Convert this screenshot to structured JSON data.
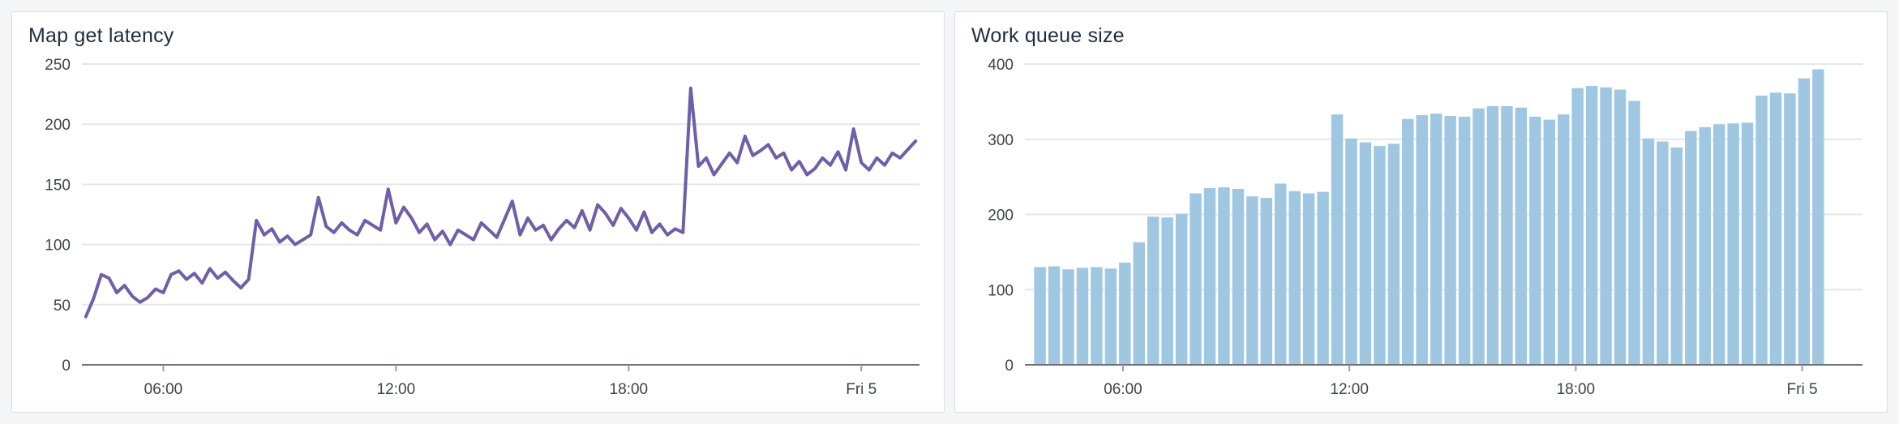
{
  "page": {
    "background": "#f4f5f7"
  },
  "panels": [
    {
      "title": "Map get latency"
    },
    {
      "title": "Work queue size"
    }
  ],
  "chart_data": [
    {
      "type": "line",
      "title": "Map get latency",
      "color": "#6d5fa8",
      "ylim": [
        0,
        250
      ],
      "yticks": [
        0,
        50,
        100,
        150,
        200,
        250
      ],
      "xlim": [
        3.9,
        25.5
      ],
      "xticks": [
        6,
        12,
        18,
        24
      ],
      "xtick_labels": [
        "06:00",
        "12:00",
        "18:00",
        "Fri 5"
      ],
      "x_unit": "hour-of-day",
      "x_start": 4.0,
      "x_step": 0.2,
      "values": [
        40,
        55,
        75,
        72,
        60,
        66,
        57,
        52,
        56,
        63,
        60,
        75,
        78,
        71,
        76,
        68,
        80,
        72,
        77,
        70,
        64,
        71,
        120,
        108,
        113,
        102,
        107,
        100,
        104,
        108,
        139,
        115,
        110,
        118,
        112,
        108,
        120,
        116,
        112,
        146,
        118,
        131,
        122,
        110,
        117,
        104,
        111,
        100,
        112,
        108,
        104,
        118,
        112,
        106,
        121,
        136,
        108,
        122,
        112,
        116,
        104,
        113,
        120,
        114,
        128,
        112,
        133,
        126,
        116,
        130,
        122,
        112,
        127,
        110,
        117,
        108,
        113,
        110,
        230,
        165,
        172,
        158,
        167,
        176,
        168,
        190,
        174,
        178,
        183,
        172,
        176,
        162,
        169,
        158,
        163,
        172,
        166,
        177,
        162,
        196,
        168,
        162,
        172,
        166,
        176,
        172,
        179,
        186
      ],
      "grid": true,
      "legend": "none"
    },
    {
      "type": "bar",
      "title": "Work queue size",
      "color": "#9fc7e2",
      "ylim": [
        0,
        400
      ],
      "yticks": [
        0,
        100,
        200,
        300,
        400
      ],
      "xlim": [
        3.4,
        25.6
      ],
      "xticks": [
        6,
        12,
        18,
        24
      ],
      "xtick_labels": [
        "06:00",
        "12:00",
        "18:00",
        "Fri 5"
      ],
      "x_unit": "hour-of-day",
      "x_start": 3.8,
      "x_step": 0.375,
      "values": [
        130,
        131,
        127,
        129,
        130,
        128,
        136,
        163,
        197,
        196,
        201,
        228,
        235,
        236,
        234,
        224,
        222,
        241,
        231,
        228,
        230,
        333,
        301,
        296,
        291,
        294,
        327,
        332,
        334,
        331,
        330,
        341,
        344,
        344,
        342,
        330,
        326,
        333,
        368,
        371,
        369,
        366,
        351,
        301,
        297,
        289,
        311,
        316,
        320,
        321,
        322,
        358,
        362,
        361,
        381,
        393
      ],
      "grid": true,
      "legend": "none"
    }
  ]
}
